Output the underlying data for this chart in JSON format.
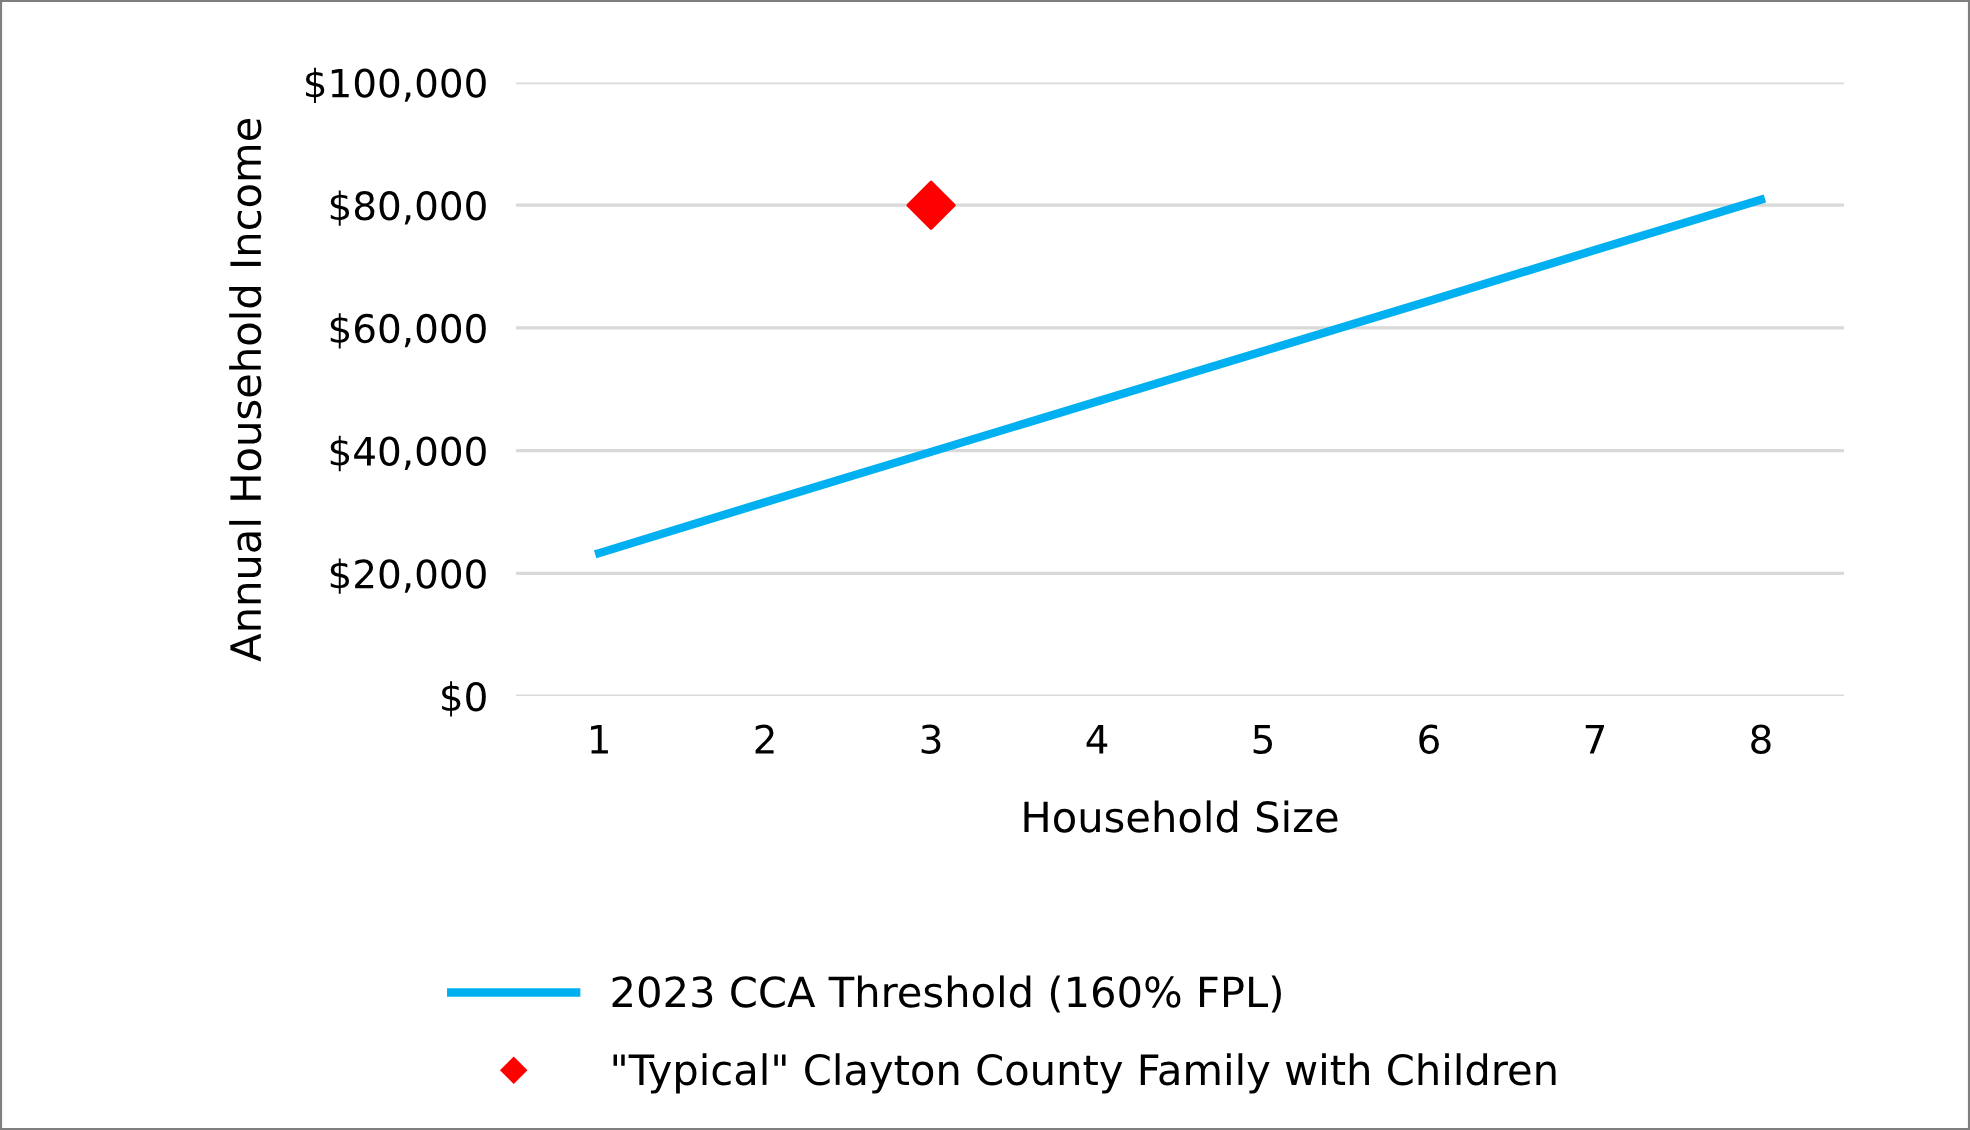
{
  "chart_data": {
    "type": "line",
    "xlabel": "Household Size",
    "ylabel": "Annual Household Income",
    "categories": [
      "1",
      "2",
      "3",
      "4",
      "5",
      "6",
      "7",
      "8"
    ],
    "series": [
      {
        "name": "2023 CCA Threshold (160% FPL)",
        "color": "#00b0f0",
        "marker": "none",
        "line_style": "solid",
        "values": [
          23300,
          31600,
          39800,
          48000,
          56200,
          64400,
          72700,
          80900
        ]
      },
      {
        "name": "\"Typical\" Clayton County Family with Children",
        "type": "scatter",
        "color": "#ff0000",
        "marker": "diamond",
        "x": [
          "3"
        ],
        "values": [
          80000
        ]
      }
    ],
    "ylim": [
      0,
      100000
    ],
    "yticks": [
      {
        "value": 0,
        "label": "$0"
      },
      {
        "value": 20000,
        "label": "$20,000"
      },
      {
        "value": 40000,
        "label": "$40,000"
      },
      {
        "value": 60000,
        "label": "$60,000"
      },
      {
        "value": 80000,
        "label": "$80,000"
      },
      {
        "value": 100000,
        "label": "$100,000"
      }
    ],
    "grid": "y",
    "legend": "bottom"
  }
}
